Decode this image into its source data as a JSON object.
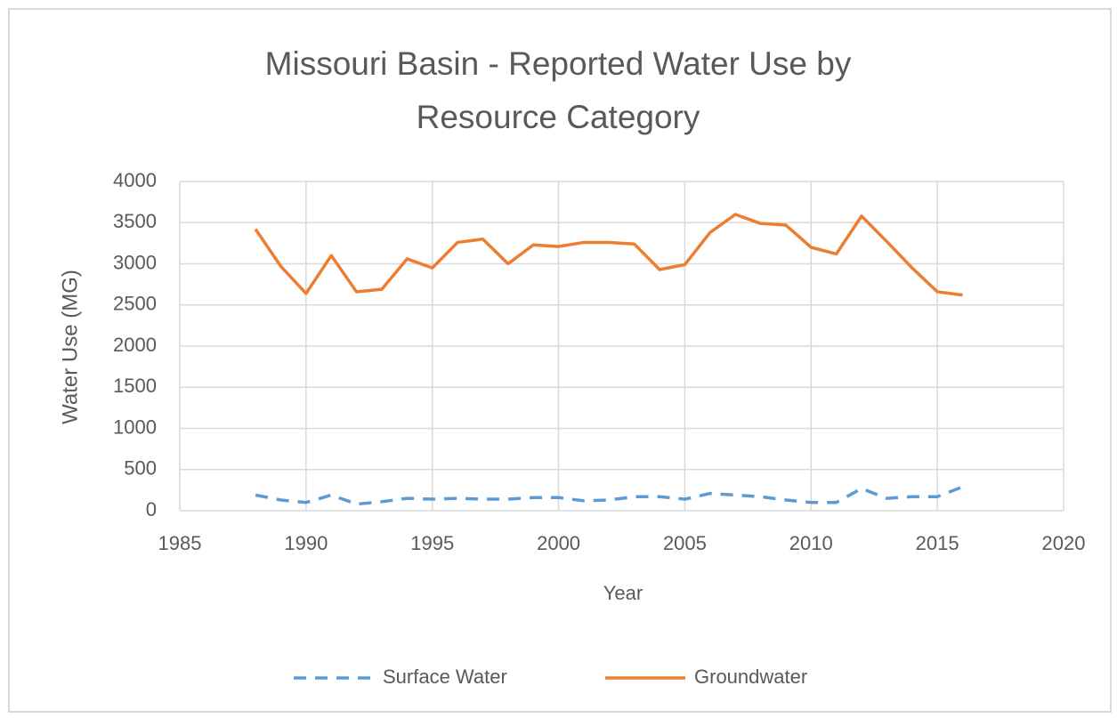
{
  "chart_data": {
    "type": "line",
    "title": "Missouri Basin - Reported Water Use by Resource Category",
    "x_label": "Year",
    "y_label": "Water Use (MG)",
    "x": [
      1988,
      1989,
      1990,
      1991,
      1992,
      1993,
      1994,
      1995,
      1996,
      1997,
      1998,
      1999,
      2000,
      2001,
      2002,
      2003,
      2004,
      2005,
      2006,
      2007,
      2008,
      2009,
      2010,
      2011,
      2012,
      2013,
      2014,
      2015,
      2016
    ],
    "series": [
      {
        "name": "Surface Water",
        "color": "#5b9bd5",
        "dash": true,
        "values": [
          190,
          130,
          100,
          190,
          80,
          110,
          150,
          140,
          150,
          140,
          140,
          160,
          160,
          120,
          130,
          170,
          170,
          140,
          210,
          190,
          170,
          130,
          100,
          100,
          270,
          150,
          170,
          170,
          290
        ]
      },
      {
        "name": "Groundwater",
        "color": "#ed7d31",
        "dash": false,
        "values": [
          3420,
          2970,
          2640,
          3100,
          2660,
          2690,
          3060,
          2950,
          3260,
          3300,
          3000,
          3230,
          3210,
          3260,
          3260,
          3240,
          2930,
          2990,
          3380,
          3600,
          3490,
          3470,
          3200,
          3120,
          3580,
          3270,
          2950,
          2660,
          2620
        ]
      }
    ],
    "xlim": [
      1985,
      2020
    ],
    "xticks": [
      1985,
      1990,
      1995,
      2000,
      2005,
      2010,
      2015,
      2020
    ],
    "ylim": [
      0,
      4000
    ],
    "yticks": [
      0,
      500,
      1000,
      1500,
      2000,
      2500,
      3000,
      3500,
      4000
    ],
    "grid": true,
    "legend": "bottom"
  }
}
